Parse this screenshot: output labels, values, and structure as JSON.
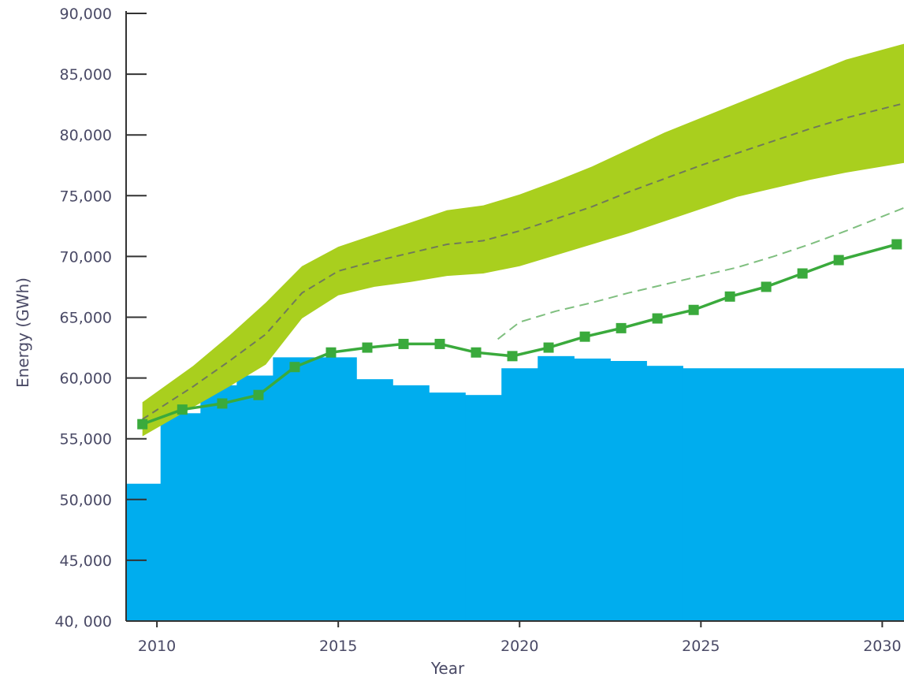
{
  "chart_data": {
    "type": "area",
    "title": "",
    "xlabel": "Year",
    "ylabel": "Energy (GWh)",
    "xlim": [
      2009.15,
      2030.6
    ],
    "ylim": [
      40000,
      90000
    ],
    "x_ticks": [
      2010,
      2015,
      2020,
      2025,
      2030
    ],
    "x_tick_labels": [
      "2010",
      "2015",
      "2020",
      "2025",
      "2030"
    ],
    "y_ticks": [
      40000,
      45000,
      50000,
      55000,
      60000,
      65000,
      70000,
      75000,
      80000,
      85000,
      90000
    ],
    "y_tick_labels": [
      "40, 000",
      "45,000",
      "50,000",
      "55,000",
      "60,000",
      "65,000",
      "70,000",
      "75,000",
      "80,000",
      "85,000",
      "90,000"
    ],
    "grid": false,
    "colors": {
      "capacity": "#00adee",
      "band": "#a9cf1e",
      "band_mid": "#707a5a",
      "demand_line": "#3aaa3c",
      "demand_marker": "#3aaa3c",
      "dashed": "#7fbf7f",
      "axis": "#333333",
      "text": "#4a4a66"
    },
    "steps": [
      {
        "from": 2009.15,
        "to": 2010.1,
        "value": 51300
      },
      {
        "from": 2010.1,
        "to": 2011.2,
        "value": 57100
      },
      {
        "from": 2011.2,
        "to": 2012.2,
        "value": 59400
      },
      {
        "from": 2012.2,
        "to": 2013.2,
        "value": 60200
      },
      {
        "from": 2013.2,
        "to": 2015.5,
        "value": 61700
      },
      {
        "from": 2015.5,
        "to": 2016.5,
        "value": 59900
      },
      {
        "from": 2016.5,
        "to": 2017.5,
        "value": 59400
      },
      {
        "from": 2017.5,
        "to": 2018.5,
        "value": 58800
      },
      {
        "from": 2018.5,
        "to": 2019.5,
        "value": 58600
      },
      {
        "from": 2019.5,
        "to": 2020.5,
        "value": 60800
      },
      {
        "from": 2020.5,
        "to": 2021.5,
        "value": 61800
      },
      {
        "from": 2021.5,
        "to": 2022.5,
        "value": 61600
      },
      {
        "from": 2022.5,
        "to": 2023.5,
        "value": 61400
      },
      {
        "from": 2023.5,
        "to": 2024.5,
        "value": 61000
      },
      {
        "from": 2024.5,
        "to": 2030.6,
        "value": 60800
      }
    ],
    "band": {
      "x": [
        2009.6,
        2011,
        2012,
        2013,
        2014,
        2015,
        2016,
        2017,
        2018,
        2019,
        2020,
        2021,
        2022,
        2023,
        2024,
        2025,
        2026,
        2027,
        2028,
        2029,
        2030.6
      ],
      "upper": [
        58000,
        61000,
        63500,
        66200,
        69200,
        70800,
        71800,
        72800,
        73800,
        74200,
        75100,
        76200,
        77400,
        78800,
        80200,
        81400,
        82600,
        83800,
        85000,
        86200,
        87500
      ],
      "lower": [
        55200,
        57600,
        59300,
        61100,
        64900,
        66800,
        67500,
        67900,
        68400,
        68600,
        69200,
        70100,
        71000,
        71900,
        72900,
        73900,
        74900,
        75600,
        76300,
        76900,
        77700
      ]
    },
    "series": [
      {
        "name": "",
        "style": "dashed-mid",
        "x": [
          2009.6,
          2011,
          2012,
          2013,
          2014,
          2015,
          2016,
          2017,
          2018,
          2019,
          2020,
          2021,
          2022,
          2023,
          2024,
          2025,
          2026,
          2027,
          2028,
          2029,
          2030.6
        ],
        "values": [
          56600,
          59300,
          61400,
          63600,
          67000,
          68800,
          69600,
          70300,
          71000,
          71300,
          72100,
          73100,
          74100,
          75300,
          76400,
          77500,
          78500,
          79500,
          80500,
          81400,
          82600
        ]
      },
      {
        "name": "",
        "style": "dashed-light",
        "x": [
          2019.4,
          2020,
          2021,
          2022,
          2023,
          2024,
          2025,
          2026,
          2027,
          2028,
          2029,
          2030.6
        ],
        "values": [
          63200,
          64600,
          65500,
          66200,
          67000,
          67700,
          68400,
          69100,
          70000,
          71000,
          72100,
          74000
        ]
      },
      {
        "name": "",
        "style": "line-markers",
        "x": [
          2009.6,
          2010.7,
          2011.8,
          2012.8,
          2013.8,
          2014.8,
          2015.8,
          2016.8,
          2017.8,
          2018.8,
          2019.8,
          2020.8,
          2021.8,
          2022.8,
          2023.8,
          2024.8,
          2025.8,
          2026.8,
          2027.8,
          2028.8,
          2030.4
        ],
        "values": [
          56200,
          57400,
          57900,
          58600,
          60900,
          62100,
          62500,
          62800,
          62800,
          62100,
          61800,
          62500,
          63400,
          64100,
          64900,
          65600,
          66700,
          67500,
          68600,
          69700,
          71000
        ]
      }
    ]
  }
}
